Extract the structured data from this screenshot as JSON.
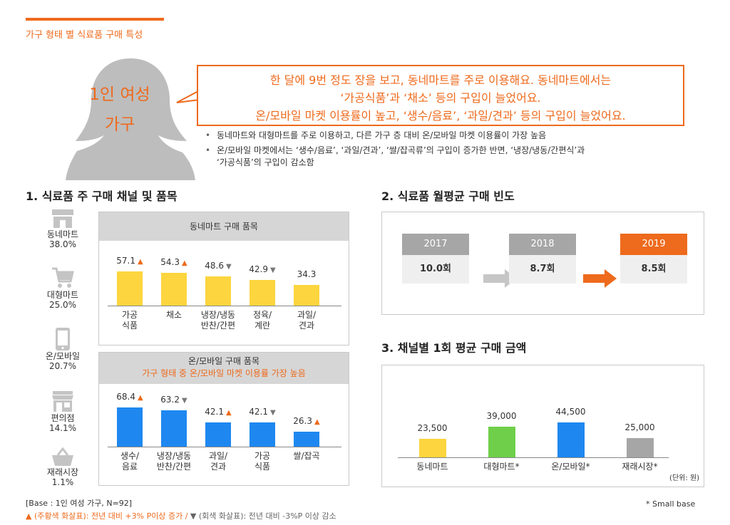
{
  "header": {
    "section_title": "가구 형태 별 식료품 구매 특성"
  },
  "persona": {
    "line1": "1인 여성",
    "line2": "가구"
  },
  "quote": {
    "line1": "한 달에 9번 정도 장을 보고, 동네마트를 주로 이용해요. 동네마트에서는",
    "line2": "‘가공식품’과 ‘채소’ 등의 구입이 늘었어요.",
    "line3": "온/모바일 마켓 이용률이 높고, ‘생수/음료’, ‘과일/견과’ 등의 구입이 늘었어요."
  },
  "bullets": [
    "동네마트와 대형마트를 주로 이용하고, 다른 가구 층 대비 온/모바일  마켓 이용률이 가장 높음",
    "온/모바일 마켓에서는 ‘생수/음료’, ‘과일/견과’, ‘쌀/잡곡류’의 구입이 증가한 반면, ‘냉장/냉동/간편식’과",
    "‘가공식품’의 구입이 감소함"
  ],
  "section1": {
    "title": "1. 식료품 주 구매 채널 및 품목",
    "channels": [
      {
        "name": "동네마트",
        "pct": "38.0%",
        "icon": "store-icon"
      },
      {
        "name": "대형마트",
        "pct": "25.0%",
        "icon": "cart-icon"
      },
      {
        "name": "온/모바일",
        "pct": "20.7%",
        "icon": "phone-icon"
      },
      {
        "name": "편의점",
        "pct": "14.1%",
        "icon": "shop-icon"
      },
      {
        "name": "재래시장",
        "pct": "1.1%",
        "icon": "basket-icon"
      }
    ]
  },
  "section2": {
    "title": "2. 식료품 월평균 구매 빈도",
    "years": [
      "2017",
      "2018",
      "2019"
    ],
    "counts": [
      "10.0회",
      "8.7회",
      "8.5회"
    ]
  },
  "section3": {
    "title": "3. 채널별 1회 평균 구매 금액",
    "unit": "(단위: 원)"
  },
  "footer": {
    "base": "[Base : 1인 여성 가구, N=92]",
    "legend_up": "▲ (주황색  화살표): 전년 대비 +3% P이상 증가 /",
    "legend_down": "▼ (회색 화살표): 전년 대비 -3%P 이상 감소",
    "small_base": "*  Small base"
  },
  "colors": {
    "accent": "#ee6a1c",
    "yellow": "#fcd53f",
    "blue": "#1e88f0",
    "green": "#6fcf4a",
    "gray": "#a6a6a6"
  },
  "chart_data": [
    {
      "type": "bar",
      "title": "동네마트 구매 품목",
      "categories": [
        "가공\n식품",
        "채소",
        "냉장/냉동\n반찬/간편",
        "정육/\n계란",
        "과일/\n견과"
      ],
      "values": [
        57.1,
        54.3,
        48.6,
        42.9,
        34.3
      ],
      "value_labels": [
        "57.1",
        "54.3",
        "48.6",
        "42.9",
        "34.3"
      ],
      "change": [
        "up",
        "up",
        "down",
        "down",
        ""
      ],
      "color": "#fcd53f"
    },
    {
      "type": "bar",
      "title": "온/모바일 구매 품목",
      "subtitle": "가구 형태 중 온/모바일 마켓 이용률 가장 높음",
      "categories": [
        "생수/\n음료",
        "냉장/냉동\n반찬/간편",
        "과일/\n견과",
        "가공\n식품",
        "쌀/잡곡"
      ],
      "values": [
        68.4,
        63.2,
        42.1,
        42.1,
        26.3
      ],
      "value_labels": [
        "68.4",
        "63.2",
        "42.1",
        "42.1",
        "26.3"
      ],
      "change": [
        "up",
        "down",
        "up",
        "down",
        "up"
      ],
      "color": "#1e88f0"
    },
    {
      "type": "bar",
      "title": "3. 채널별 1회 평균 구매 금액",
      "categories": [
        "동네마트",
        "대형마트*",
        "온/모바일*",
        "재래시장*"
      ],
      "values": [
        23500,
        39000,
        44500,
        25000
      ],
      "value_labels": [
        "23,500",
        "39,000",
        "44,500",
        "25,000"
      ],
      "colors": [
        "#fcd53f",
        "#6fcf4a",
        "#1e88f0",
        "#a6a6a6"
      ],
      "unit": "(단위: 원)"
    }
  ]
}
